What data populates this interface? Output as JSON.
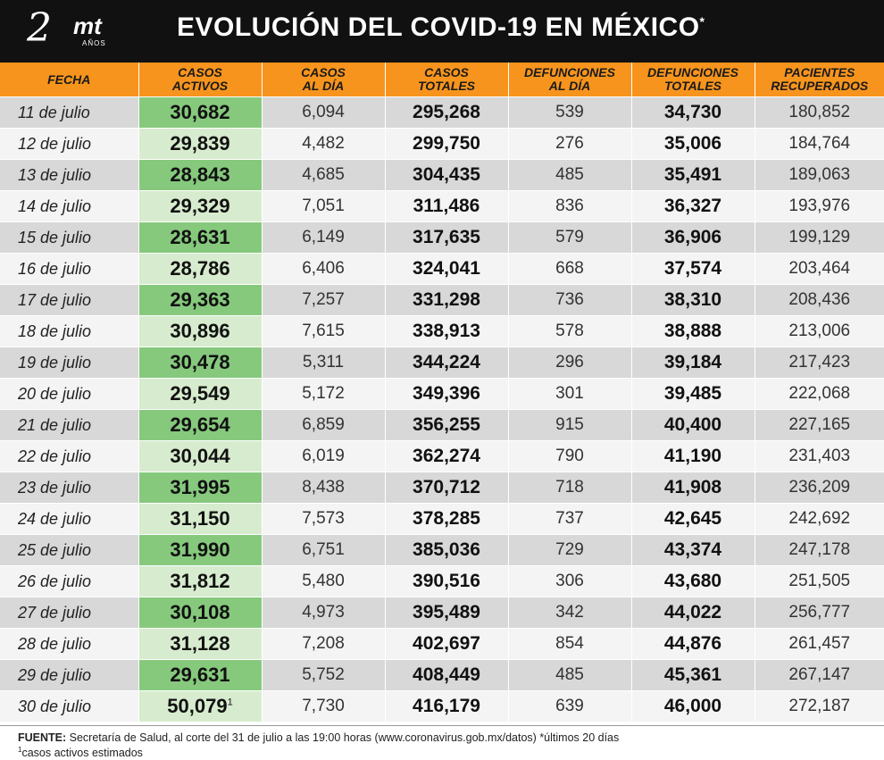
{
  "header": {
    "logo_number": "2",
    "logo_brand": "mt",
    "logo_years": "AÑOS",
    "title": "EVOLUCIÓN DEL COVID-19 EN MÉXICO",
    "title_mark": "*"
  },
  "table": {
    "columns": [
      [
        "FECHA"
      ],
      [
        "CASOS",
        "ACTIVOS"
      ],
      [
        "CASOS",
        "AL DÍA"
      ],
      [
        "CASOS",
        "TOTALES"
      ],
      [
        "DEFUNCIONES",
        "AL DÍA"
      ],
      [
        "DEFUNCIONES",
        "TOTALES"
      ],
      [
        "PACIENTES",
        "RECUPERADOS"
      ]
    ],
    "rows": [
      {
        "fecha": "11 de julio",
        "activos": "30,682",
        "dia": "6,094",
        "totales": "295,268",
        "def_dia": "539",
        "def_tot": "34,730",
        "recup": "180,852"
      },
      {
        "fecha": "12 de julio",
        "activos": "29,839",
        "dia": "4,482",
        "totales": "299,750",
        "def_dia": "276",
        "def_tot": "35,006",
        "recup": "184,764"
      },
      {
        "fecha": "13 de julio",
        "activos": "28,843",
        "dia": "4,685",
        "totales": "304,435",
        "def_dia": "485",
        "def_tot": "35,491",
        "recup": "189,063"
      },
      {
        "fecha": "14 de julio",
        "activos": "29,329",
        "dia": "7,051",
        "totales": "311,486",
        "def_dia": "836",
        "def_tot": "36,327",
        "recup": "193,976"
      },
      {
        "fecha": "15 de julio",
        "activos": "28,631",
        "dia": "6,149",
        "totales": "317,635",
        "def_dia": "579",
        "def_tot": "36,906",
        "recup": "199,129"
      },
      {
        "fecha": "16 de julio",
        "activos": "28,786",
        "dia": "6,406",
        "totales": "324,041",
        "def_dia": "668",
        "def_tot": "37,574",
        "recup": "203,464"
      },
      {
        "fecha": "17 de julio",
        "activos": "29,363",
        "dia": "7,257",
        "totales": "331,298",
        "def_dia": "736",
        "def_tot": "38,310",
        "recup": "208,436"
      },
      {
        "fecha": "18 de julio",
        "activos": "30,896",
        "dia": "7,615",
        "totales": "338,913",
        "def_dia": "578",
        "def_tot": "38,888",
        "recup": "213,006"
      },
      {
        "fecha": "19 de julio",
        "activos": "30,478",
        "dia": "5,311",
        "totales": "344,224",
        "def_dia": "296",
        "def_tot": "39,184",
        "recup": "217,423"
      },
      {
        "fecha": "20 de julio",
        "activos": "29,549",
        "dia": "5,172",
        "totales": "349,396",
        "def_dia": "301",
        "def_tot": "39,485",
        "recup": "222,068"
      },
      {
        "fecha": "21 de julio",
        "activos": "29,654",
        "dia": "6,859",
        "totales": "356,255",
        "def_dia": "915",
        "def_tot": "40,400",
        "recup": "227,165"
      },
      {
        "fecha": "22 de julio",
        "activos": "30,044",
        "dia": "6,019",
        "totales": "362,274",
        "def_dia": "790",
        "def_tot": "41,190",
        "recup": "231,403"
      },
      {
        "fecha": "23 de julio",
        "activos": "31,995",
        "dia": "8,438",
        "totales": "370,712",
        "def_dia": "718",
        "def_tot": "41,908",
        "recup": "236,209"
      },
      {
        "fecha": "24 de julio",
        "activos": "31,150",
        "dia": "7,573",
        "totales": "378,285",
        "def_dia": "737",
        "def_tot": "42,645",
        "recup": "242,692"
      },
      {
        "fecha": "25 de julio",
        "activos": "31,990",
        "dia": "6,751",
        "totales": "385,036",
        "def_dia": "729",
        "def_tot": "43,374",
        "recup": "247,178"
      },
      {
        "fecha": "26 de julio",
        "activos": "31,812",
        "dia": "5,480",
        "totales": "390,516",
        "def_dia": "306",
        "def_tot": "43,680",
        "recup": "251,505"
      },
      {
        "fecha": "27 de julio",
        "activos": "30,108",
        "dia": "4,973",
        "totales": "395,489",
        "def_dia": "342",
        "def_tot": "44,022",
        "recup": "256,777"
      },
      {
        "fecha": "28 de julio",
        "activos": "31,128",
        "dia": "7,208",
        "totales": "402,697",
        "def_dia": "854",
        "def_tot": "44,876",
        "recup": "261,457"
      },
      {
        "fecha": "29 de julio",
        "activos": "29,631",
        "dia": "5,752",
        "totales": "408,449",
        "def_dia": "485",
        "def_tot": "45,361",
        "recup": "267,147"
      },
      {
        "fecha": "30 de julio",
        "activos": "50,079",
        "activos_mark": "1",
        "dia": "7,730",
        "totales": "416,179",
        "def_dia": "639",
        "def_tot": "46,000",
        "recup": "272,187"
      }
    ]
  },
  "footer": {
    "source_label": "FUENTE:",
    "source_text": " Secretaría de Salud, al corte del 31 de julio a las 19:00 horas (www.coronavirus.gob.mx/datos) *últimos 20 días",
    "note_mark": "1",
    "note_text": "casos activos estimados"
  },
  "colors": {
    "header_bg": "#111111",
    "column_header_bg": "#f7941d",
    "active_dark": "#86c97d",
    "active_light": "#d7ecce",
    "row_dark": "#d8d8d8",
    "row_light": "#f4f4f4"
  }
}
